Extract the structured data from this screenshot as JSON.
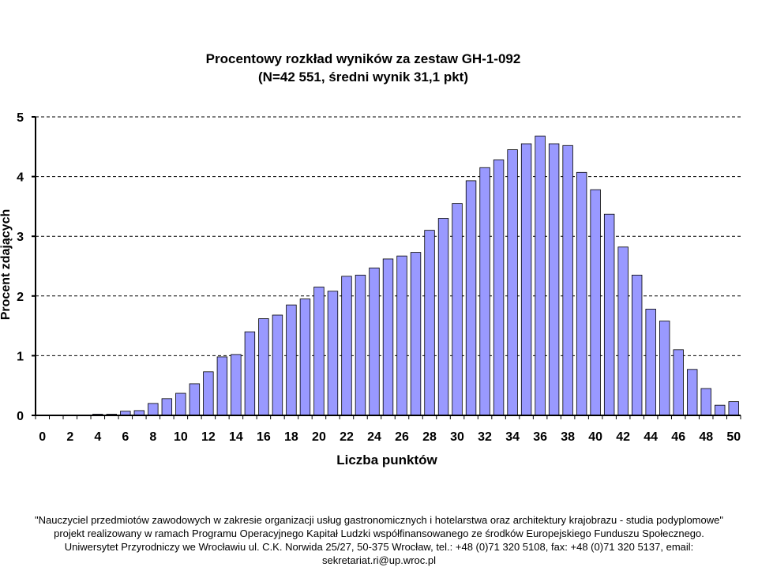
{
  "chart_data": {
    "type": "bar",
    "title": "Procentowy rozkład wyników za zestaw GH-1-092",
    "subtitle": "(N=42 551, średni wynik 31,1 pkt)",
    "xlabel": "Liczba punktów",
    "ylabel": "Procent zdających",
    "ylim": [
      0,
      5
    ],
    "yticks": [
      "0",
      "1",
      "2",
      "3",
      "4",
      "5"
    ],
    "grid": true,
    "bar_color": "#9999ff",
    "categories": [
      "0",
      "1",
      "2",
      "3",
      "4",
      "5",
      "6",
      "7",
      "8",
      "9",
      "10",
      "11",
      "12",
      "13",
      "14",
      "15",
      "16",
      "17",
      "18",
      "19",
      "20",
      "21",
      "22",
      "23",
      "24",
      "25",
      "26",
      "27",
      "28",
      "29",
      "30",
      "31",
      "32",
      "33",
      "34",
      "35",
      "36",
      "37",
      "38",
      "39",
      "40",
      "41",
      "42",
      "43",
      "44",
      "45",
      "46",
      "47",
      "48",
      "49",
      "50"
    ],
    "x_tick_labels": [
      "0",
      "2",
      "4",
      "6",
      "8",
      "10",
      "12",
      "14",
      "16",
      "18",
      "20",
      "22",
      "24",
      "26",
      "28",
      "30",
      "32",
      "34",
      "36",
      "38",
      "40",
      "42",
      "44",
      "46",
      "48",
      "50"
    ],
    "values": [
      0.0,
      0.0,
      0.0,
      0.0,
      0.02,
      0.02,
      0.07,
      0.08,
      0.2,
      0.28,
      0.37,
      0.53,
      0.73,
      0.98,
      1.02,
      1.4,
      1.62,
      1.68,
      1.85,
      1.95,
      2.15,
      2.08,
      2.33,
      2.35,
      2.47,
      2.62,
      2.67,
      2.73,
      3.1,
      3.3,
      3.55,
      3.93,
      4.15,
      4.28,
      4.45,
      4.55,
      4.68,
      4.55,
      4.52,
      4.07,
      3.78,
      3.37,
      2.82,
      2.35,
      1.78,
      1.58,
      1.1,
      0.77,
      0.45,
      0.17,
      0.23
    ]
  },
  "footer": {
    "line1": "\"Nauczyciel przedmiotów zawodowych w zakresie organizacji usług gastronomicznych i hotelarstwa oraz architektury krajobrazu - studia podyplomowe\"",
    "line2": "projekt realizowany w ramach Programu Operacyjnego Kapitał Ludzki współfinansowanego ze środków Europejskiego Funduszu Społecznego.",
    "line3": "Uniwersytet Przyrodniczy we Wrocławiu ul. C.K. Norwida 25/27, 50-375 Wrocław, tel.: +48 (0)71 320 5108, fax: +48 (0)71 320 5137, email:",
    "line4": "sekretariat.ri@up.wroc.pl"
  }
}
